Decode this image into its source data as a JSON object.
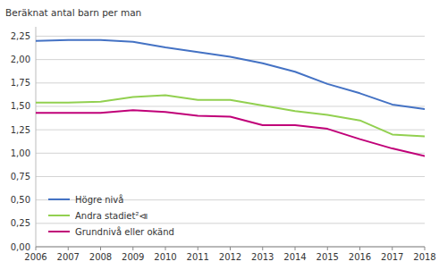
{
  "chart_data": {
    "type": "line",
    "y_label": "Beräknat antal barn per man",
    "x": [
      2006,
      2007,
      2008,
      2009,
      2010,
      2011,
      2012,
      2013,
      2014,
      2015,
      2016,
      2017,
      2018
    ],
    "xlim": [
      2006,
      2018
    ],
    "xticks": [
      2006,
      2007,
      2008,
      2009,
      2010,
      2011,
      2012,
      2013,
      2014,
      2015,
      2016,
      2017,
      2018
    ],
    "ylim": [
      0,
      2.35
    ],
    "yticks": [
      {
        "value": 0.0,
        "label": "0,00"
      },
      {
        "value": 0.25,
        "label": "0,25"
      },
      {
        "value": 0.5,
        "label": "0,50"
      },
      {
        "value": 0.75,
        "label": "0,75"
      },
      {
        "value": 1.0,
        "label": "1,00"
      },
      {
        "value": 1.25,
        "label": "1,25"
      },
      {
        "value": 1.5,
        "label": "1,50"
      },
      {
        "value": 1.75,
        "label": "1,75"
      },
      {
        "value": 2.0,
        "label": "2,00"
      },
      {
        "value": 2.25,
        "label": "2,25"
      }
    ],
    "grid": "y",
    "legend": "lower left",
    "series": [
      {
        "name": "Högre nivå",
        "color": "#4472C4",
        "values": [
          2.2,
          2.21,
          2.21,
          2.19,
          2.13,
          2.08,
          2.03,
          1.96,
          1.87,
          1.74,
          1.64,
          1.52,
          1.47
        ]
      },
      {
        "name": "Andra stadiet²⧏",
        "color": "#92D050",
        "values": [
          1.54,
          1.54,
          1.55,
          1.6,
          1.62,
          1.57,
          1.57,
          1.51,
          1.45,
          1.41,
          1.35,
          1.2,
          1.18
        ]
      },
      {
        "name": "Grundnivå eller okänd",
        "color": "#C00078",
        "values": [
          1.43,
          1.43,
          1.43,
          1.46,
          1.44,
          1.4,
          1.39,
          1.3,
          1.3,
          1.26,
          1.15,
          1.05,
          0.97
        ]
      }
    ]
  }
}
